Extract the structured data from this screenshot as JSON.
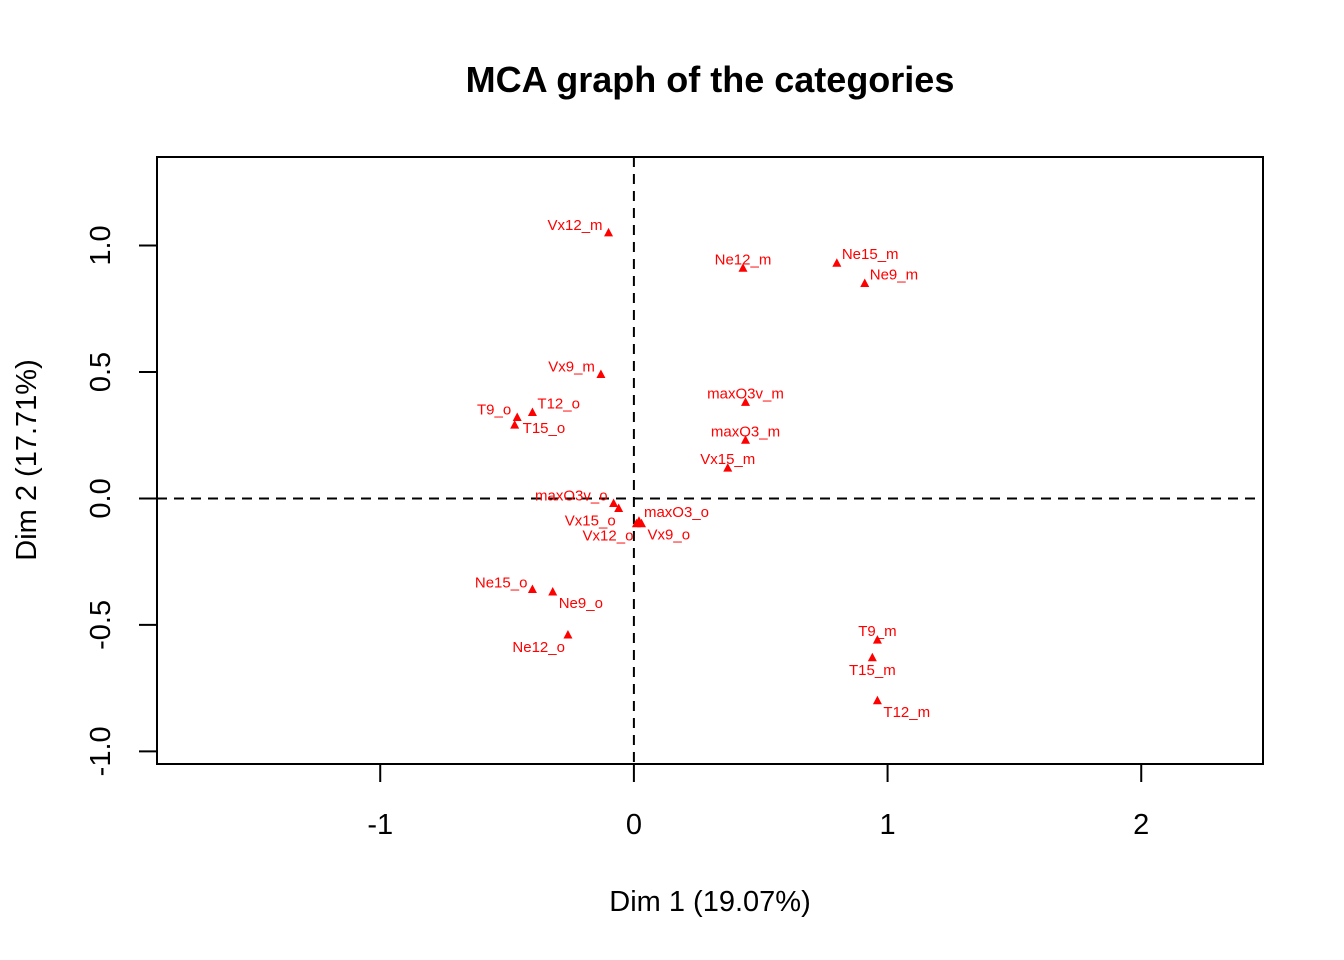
{
  "chart_data": {
    "type": "scatter",
    "title": "MCA graph of the categories",
    "xlabel": "Dim 1 (19.07%)",
    "ylabel": "Dim 2 (17.71%)",
    "xlim": [
      -1.88,
      2.48
    ],
    "ylim": [
      -1.05,
      1.35
    ],
    "x_ticks": [
      -1,
      0,
      1,
      2
    ],
    "x_tick_labels": [
      "-1",
      "0",
      "1",
      "2"
    ],
    "y_ticks": [
      -1.0,
      -0.5,
      0.0,
      0.5,
      1.0
    ],
    "y_tick_labels": [
      "-1.0",
      "-0.5",
      "0.0",
      "0.5",
      "1.0"
    ],
    "reference_lines": {
      "x": 0,
      "y": 0,
      "style": "dashed"
    },
    "point_color": "#ff0000",
    "marker": "triangle",
    "points": [
      {
        "label": "Vx12_m",
        "x": -0.1,
        "y": 1.05,
        "pos": "left"
      },
      {
        "label": "Ne12_m",
        "x": 0.43,
        "y": 0.91,
        "pos": "above"
      },
      {
        "label": "Ne15_m",
        "x": 0.8,
        "y": 0.93,
        "pos": "above-right"
      },
      {
        "label": "Ne9_m",
        "x": 0.91,
        "y": 0.85,
        "pos": "above-right"
      },
      {
        "label": "Vx9_m",
        "x": -0.13,
        "y": 0.49,
        "pos": "left"
      },
      {
        "label": "maxO3v_m",
        "x": 0.44,
        "y": 0.38,
        "pos": "above"
      },
      {
        "label": "T12_o",
        "x": -0.4,
        "y": 0.34,
        "pos": "above-right"
      },
      {
        "label": "T9_o",
        "x": -0.46,
        "y": 0.32,
        "pos": "left"
      },
      {
        "label": "T15_o",
        "x": -0.47,
        "y": 0.29,
        "pos": "right"
      },
      {
        "label": "maxO3_m",
        "x": 0.44,
        "y": 0.23,
        "pos": "above"
      },
      {
        "label": "Vx15_m",
        "x": 0.37,
        "y": 0.12,
        "pos": "above"
      },
      {
        "label": "maxO3v_o",
        "x": -0.08,
        "y": -0.02,
        "pos": "left"
      },
      {
        "label": "Vx15_o",
        "x": -0.06,
        "y": -0.04,
        "pos": "below-left"
      },
      {
        "label": "maxO3_o",
        "x": 0.02,
        "y": -0.09,
        "pos": "above-right"
      },
      {
        "label": "Vx12_o",
        "x": 0.01,
        "y": -0.1,
        "pos": "below-left"
      },
      {
        "label": "Vx9_o",
        "x": 0.03,
        "y": -0.1,
        "pos": "below-right"
      },
      {
        "label": "Ne15_o",
        "x": -0.4,
        "y": -0.36,
        "pos": "above-left"
      },
      {
        "label": "Ne9_o",
        "x": -0.32,
        "y": -0.37,
        "pos": "below-right"
      },
      {
        "label": "Ne12_o",
        "x": -0.26,
        "y": -0.54,
        "pos": "below-left"
      },
      {
        "label": "T9_m",
        "x": 0.96,
        "y": -0.56,
        "pos": "above"
      },
      {
        "label": "T15_m",
        "x": 0.94,
        "y": -0.63,
        "pos": "below"
      },
      {
        "label": "T12_m",
        "x": 0.96,
        "y": -0.8,
        "pos": "below-right"
      }
    ]
  }
}
